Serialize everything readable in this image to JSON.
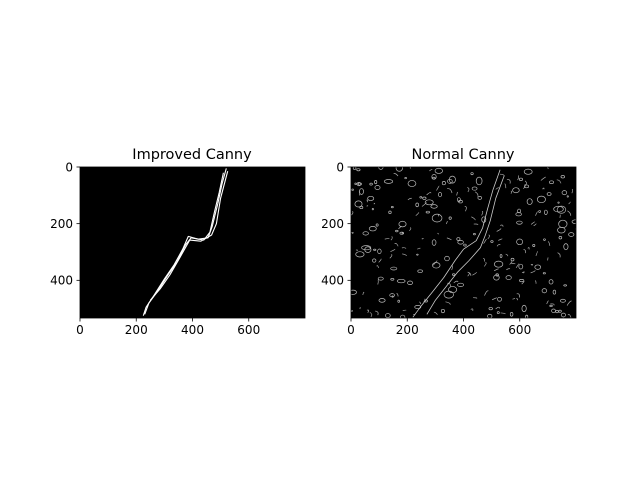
{
  "colors": {
    "figure_bg": "#ffffff",
    "image_bg": "#000000",
    "edge": "#ffffff",
    "axis": "#000000"
  },
  "chart_data": [
    {
      "type": "image",
      "title": "Improved Canny",
      "xlabel": "",
      "ylabel": "",
      "xlim": [
        0,
        800
      ],
      "ylim": [
        533,
        0
      ],
      "xticks": [
        0,
        200,
        400,
        600
      ],
      "yticks": [
        0,
        200,
        400
      ],
      "content": "sparse edges tracing a single diagonal crack",
      "edge_paths": [
        [
          [
            520,
            5
          ],
          [
            505,
            60
          ],
          [
            490,
            130
          ],
          [
            470,
            210
          ],
          [
            455,
            250
          ],
          [
            420,
            255
          ],
          [
            385,
            245
          ],
          [
            365,
            290
          ],
          [
            335,
            345
          ],
          [
            300,
            395
          ],
          [
            265,
            450
          ],
          [
            235,
            495
          ],
          [
            225,
            525
          ]
        ],
        [
          [
            510,
            20
          ],
          [
            495,
            90
          ],
          [
            478,
            160
          ],
          [
            462,
            230
          ],
          [
            440,
            258
          ],
          [
            395,
            250
          ],
          [
            375,
            275
          ],
          [
            345,
            335
          ],
          [
            310,
            385
          ],
          [
            275,
            440
          ],
          [
            245,
            480
          ],
          [
            230,
            520
          ]
        ],
        [
          [
            525,
            15
          ],
          [
            500,
            110
          ],
          [
            485,
            200
          ],
          [
            468,
            240
          ],
          [
            430,
            262
          ],
          [
            390,
            258
          ],
          [
            355,
            320
          ],
          [
            320,
            380
          ],
          [
            285,
            430
          ],
          [
            250,
            470
          ]
        ]
      ]
    },
    {
      "type": "image",
      "title": "Normal Canny",
      "xlabel": "",
      "ylabel": "",
      "xlim": [
        0,
        800
      ],
      "ylim": [
        533,
        0
      ],
      "xticks": [
        0,
        200,
        400,
        600
      ],
      "yticks": [
        0,
        200,
        400
      ],
      "content": "dense noisy edges across the whole image with a faint diagonal crack",
      "edge_paths": [
        [
          [
            530,
            10
          ],
          [
            505,
            80
          ],
          [
            485,
            150
          ],
          [
            468,
            215
          ],
          [
            445,
            260
          ],
          [
            400,
            290
          ],
          [
            370,
            330
          ],
          [
            330,
            390
          ],
          [
            290,
            440
          ],
          [
            250,
            490
          ],
          [
            220,
            530
          ]
        ],
        [
          [
            545,
            30
          ],
          [
            515,
            110
          ],
          [
            495,
            190
          ],
          [
            478,
            240
          ],
          [
            460,
            285
          ],
          [
            420,
            330
          ],
          [
            380,
            370
          ],
          [
            340,
            420
          ],
          [
            300,
            470
          ],
          [
            270,
            520
          ]
        ]
      ],
      "noise_blob_count": 260,
      "noise_seed": 17
    }
  ]
}
